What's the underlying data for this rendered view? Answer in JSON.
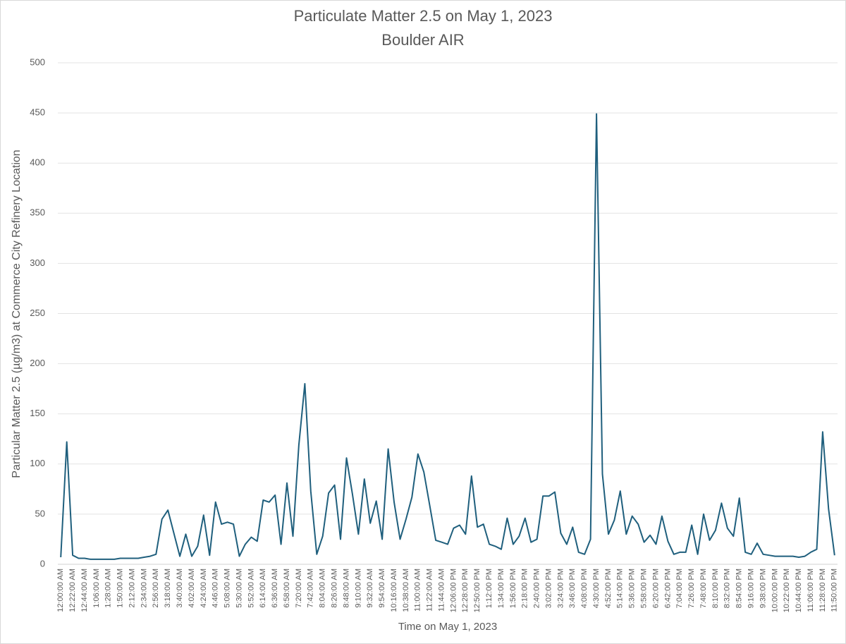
{
  "chart_data": {
    "type": "line",
    "title": "Particulate Matter 2.5 on May 1, 2023",
    "subtitle": "Boulder AIR",
    "y_label": "Particular Matter 2.5 (µg/m3)  at Commerce City Refinery Location",
    "x_label": "Time on May 1, 2023",
    "categories": [
      "12:00:00 AM",
      null,
      "12:22:00 AM",
      null,
      "12:44:00 AM",
      null,
      "1:06:00 AM",
      null,
      "1:28:00 AM",
      null,
      "1:50:00 AM",
      null,
      "2:12:00 AM",
      null,
      "2:34:00 AM",
      null,
      "2:56:00 AM",
      null,
      "3:18:00 AM",
      null,
      "3:40:00 AM",
      null,
      "4:02:00 AM",
      null,
      "4:24:00 AM",
      null,
      "4:46:00 AM",
      null,
      "5:08:00 AM",
      null,
      "5:30:00 AM",
      null,
      "5:52:00 AM",
      null,
      "6:14:00 AM",
      null,
      "6:36:00 AM",
      null,
      "6:58:00 AM",
      null,
      "7:20:00 AM",
      null,
      "7:42:00 AM",
      null,
      "8:04:00 AM",
      null,
      "8:26:00 AM",
      null,
      "8:48:00 AM",
      null,
      "9:10:00 AM",
      null,
      "9:32:00 AM",
      null,
      "9:54:00 AM",
      null,
      "10:16:00 AM",
      null,
      "10:38:00 AM",
      null,
      "11:00:00 AM",
      null,
      "11:22:00 AM",
      null,
      "11:44:00 AM",
      null,
      "12:06:00 PM",
      null,
      "12:28:00 PM",
      null,
      "12:50:00 PM",
      null,
      "1:12:00 PM",
      null,
      "1:34:00 PM",
      null,
      "1:56:00 PM",
      null,
      "2:18:00 PM",
      null,
      "2:40:00 PM",
      null,
      "3:02:00 PM",
      null,
      "3:24:00 PM",
      null,
      "3:46:00 PM",
      null,
      "4:08:00 PM",
      null,
      "4:30:00 PM",
      null,
      "4:52:00 PM",
      null,
      "5:14:00 PM",
      null,
      "5:36:00 PM",
      null,
      "5:58:00 PM",
      null,
      "6:20:00 PM",
      null,
      "6:42:00 PM",
      null,
      "7:04:00 PM",
      null,
      "7:26:00 PM",
      null,
      "7:48:00 PM",
      null,
      "8:10:00 PM",
      null,
      "8:32:00 PM",
      null,
      "8:54:00 PM",
      null,
      "9:16:00 PM",
      null,
      "9:38:00 PM",
      null,
      "10:00:00 PM",
      null,
      "10:22:00 PM",
      null,
      "10:44:00 PM",
      null,
      "11:06:00 PM",
      null,
      "11:28:00 PM",
      null,
      "11:50:00 PM"
    ],
    "values": [
      7,
      122,
      9,
      6,
      6,
      5,
      5,
      5,
      5,
      5,
      6,
      6,
      6,
      6,
      7,
      8,
      10,
      45,
      54,
      31,
      8,
      30,
      8,
      18,
      49,
      9,
      62,
      40,
      42,
      40,
      8,
      20,
      27,
      23,
      64,
      62,
      69,
      20,
      81,
      28,
      119,
      180,
      73,
      10,
      28,
      71,
      79,
      25,
      106,
      70,
      30,
      85,
      41,
      63,
      25,
      115,
      62,
      25,
      45,
      67,
      110,
      92,
      58,
      24,
      22,
      20,
      36,
      39,
      30,
      88,
      37,
      40,
      20,
      18,
      15,
      46,
      20,
      28,
      46,
      22,
      25,
      68,
      68,
      72,
      31,
      20,
      37,
      12,
      10,
      25,
      449,
      90,
      30,
      44,
      73,
      30,
      48,
      40,
      22,
      29,
      20,
      48,
      23,
      10,
      12,
      12,
      39,
      10,
      50,
      24,
      34,
      61,
      36,
      28,
      66,
      12,
      10,
      21,
      10,
      9,
      8,
      8,
      8,
      8,
      7,
      8,
      12,
      15,
      132,
      55,
      9
    ],
    "color": "#1f5f7d",
    "ylim": [
      0,
      500
    ],
    "yticks": [
      0,
      50,
      100,
      150,
      200,
      250,
      300,
      350,
      400,
      450,
      500
    ],
    "grid": true
  }
}
